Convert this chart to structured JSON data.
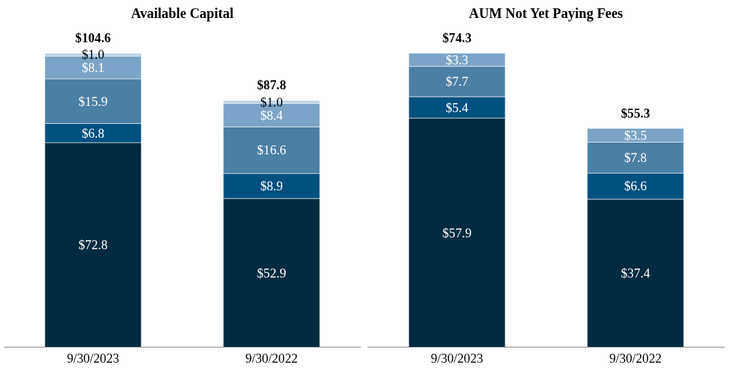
{
  "chart_data": [
    {
      "type": "bar",
      "title": "Available Capital",
      "stacked": true,
      "categories": [
        "9/30/2023",
        "9/30/2022"
      ],
      "series": [
        {
          "color": "#002a42",
          "values": [
            72.8,
            52.9
          ],
          "value_labels": [
            "$72.8",
            "$52.9"
          ]
        },
        {
          "color": "#005080",
          "values": [
            6.8,
            8.9
          ],
          "value_labels": [
            "$6.8",
            "$8.9"
          ]
        },
        {
          "color": "#4a7fa6",
          "values": [
            15.9,
            16.6
          ],
          "value_labels": [
            "$15.9",
            "$16.6"
          ]
        },
        {
          "color": "#7aa4c8",
          "values": [
            8.1,
            8.4
          ],
          "value_labels": [
            "$8.1",
            "$8.4"
          ]
        },
        {
          "color": "#bdd3e6",
          "values": [
            1.0,
            1.0
          ],
          "value_labels": [
            "$1.0",
            "$1.0"
          ]
        }
      ],
      "totals": [
        "$104.6",
        "$87.8"
      ]
    },
    {
      "type": "bar",
      "title": "AUM Not Yet Paying Fees",
      "stacked": true,
      "categories": [
        "9/30/2023",
        "9/30/2022"
      ],
      "series": [
        {
          "color": "#002a42",
          "values": [
            57.9,
            37.4
          ],
          "value_labels": [
            "$57.9",
            "$37.4"
          ]
        },
        {
          "color": "#005080",
          "values": [
            5.4,
            6.6
          ],
          "value_labels": [
            "$5.4",
            "$6.6"
          ]
        },
        {
          "color": "#4a7fa6",
          "values": [
            7.7,
            7.8
          ],
          "value_labels": [
            "$7.7",
            "$7.8"
          ]
        },
        {
          "color": "#7aa4c8",
          "values": [
            3.3,
            3.5
          ],
          "value_labels": [
            "$3.3",
            "$3.5"
          ]
        }
      ],
      "totals": [
        "$74.3",
        "$55.3"
      ]
    }
  ]
}
